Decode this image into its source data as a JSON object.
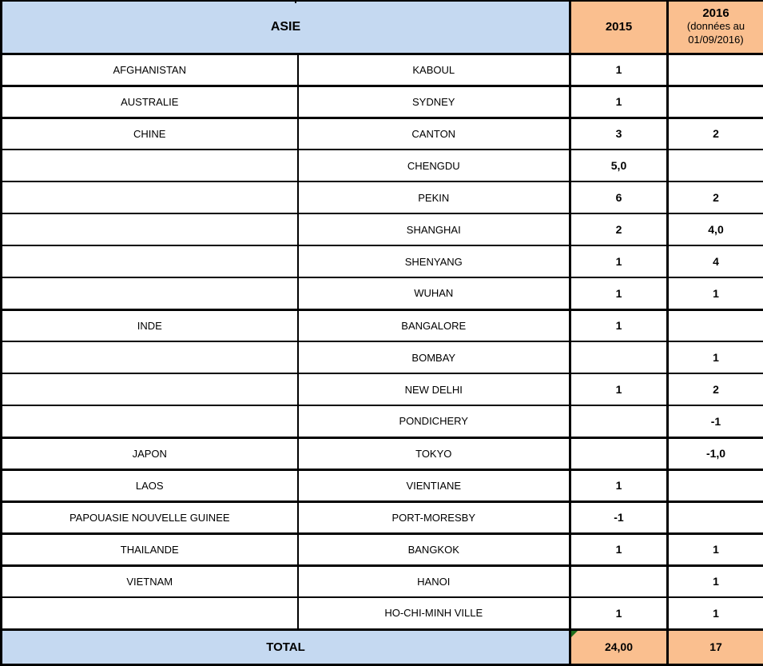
{
  "table": {
    "header": {
      "region": "ASIE",
      "year1": "2015",
      "year2": "2016",
      "year2_note": "(données au 01/09/2016)"
    },
    "rows": [
      {
        "country": "AFGHANISTAN",
        "city": "KABOUL",
        "y2015": "1",
        "y2016": ""
      },
      {
        "country": "AUSTRALIE",
        "city": "SYDNEY",
        "y2015": "1",
        "y2016": ""
      },
      {
        "country": "CHINE",
        "city": "CANTON",
        "y2015": "3",
        "y2016": "2"
      },
      {
        "country": "",
        "city": "CHENGDU",
        "y2015": "5,0",
        "y2016": ""
      },
      {
        "country": "",
        "city": "PEKIN",
        "y2015": "6",
        "y2016": "2"
      },
      {
        "country": "",
        "city": "SHANGHAI",
        "y2015": "2",
        "y2016": "4,0"
      },
      {
        "country": "",
        "city": "SHENYANG",
        "y2015": "1",
        "y2016": "4"
      },
      {
        "country": "",
        "city": "WUHAN",
        "y2015": "1",
        "y2016": "1"
      },
      {
        "country": "INDE",
        "city": "BANGALORE",
        "y2015": "1",
        "y2016": ""
      },
      {
        "country": "",
        "city": "BOMBAY",
        "y2015": "",
        "y2016": "1"
      },
      {
        "country": "",
        "city": "NEW DELHI",
        "y2015": "1",
        "y2016": "2"
      },
      {
        "country": "",
        "city": "PONDICHERY",
        "y2015": "",
        "y2016": "-1"
      },
      {
        "country": "JAPON",
        "city": "TOKYO",
        "y2015": "",
        "y2016": "-1,0"
      },
      {
        "country": "LAOS",
        "city": "VIENTIANE",
        "y2015": "1",
        "y2016": ""
      },
      {
        "country": "PAPOUASIE NOUVELLE GUINEE",
        "city": "PORT-MORESBY",
        "y2015": "-1",
        "y2016": ""
      },
      {
        "country": "THAILANDE",
        "city": "BANGKOK",
        "y2015": "1",
        "y2016": "1"
      },
      {
        "country": "VIETNAM",
        "city": "HANOI",
        "y2015": "",
        "y2016": "1"
      },
      {
        "country": "",
        "city": "HO-CHI-MINH VILLE",
        "y2015": "1",
        "y2016": "1"
      }
    ],
    "total": {
      "label": "TOTAL",
      "y2015": "24,00",
      "y2016": "17"
    }
  },
  "colors": {
    "header_blue": "#C5D9F1",
    "accent_orange": "#FABF8F",
    "grid_black": "#000000",
    "error_indicator_green": "#1E6E1E"
  }
}
